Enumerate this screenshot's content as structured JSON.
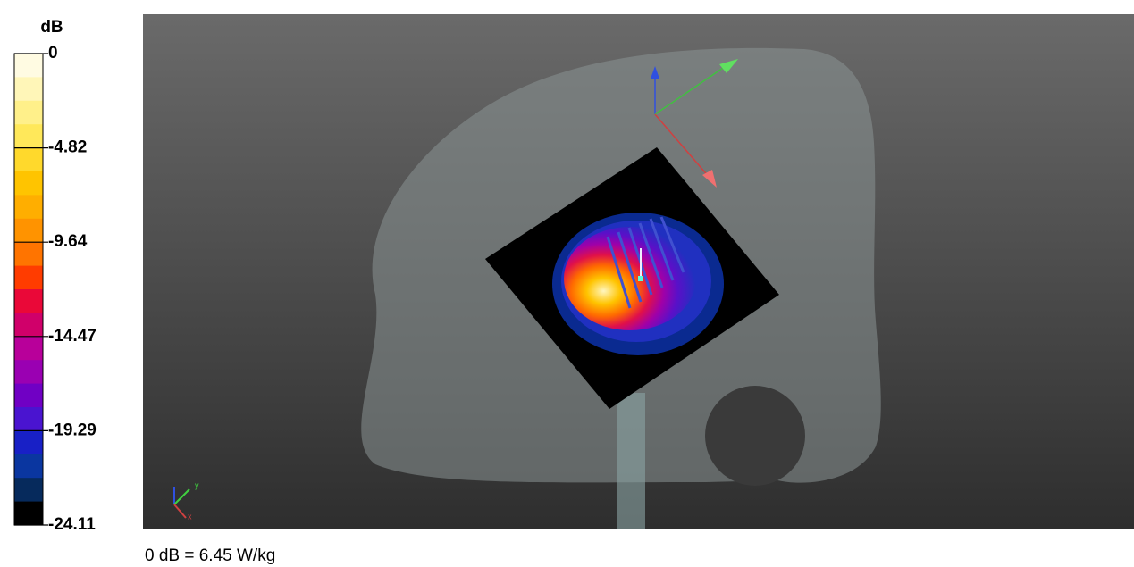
{
  "colorbar": {
    "title": "dB",
    "labels": [
      "0",
      "-4.82",
      "-9.64",
      "-14.47",
      "-19.29",
      "-24.11"
    ],
    "colors": [
      "#fffbe2",
      "#fff6b8",
      "#fff08a",
      "#ffe85a",
      "#ffd92c",
      "#ffc400",
      "#ffae00",
      "#ff9300",
      "#ff7400",
      "#ff3c00",
      "#ea0838",
      "#d0006a",
      "#b8009a",
      "#9a00b2",
      "#7000c4",
      "#4a14d0",
      "#1820c6",
      "#0a36a0",
      "#062a5c",
      "#000000"
    ]
  },
  "viewport": {
    "axis_labels": [
      "y",
      "x"
    ]
  },
  "footer": "0 dB = 6.45 W/kg"
}
